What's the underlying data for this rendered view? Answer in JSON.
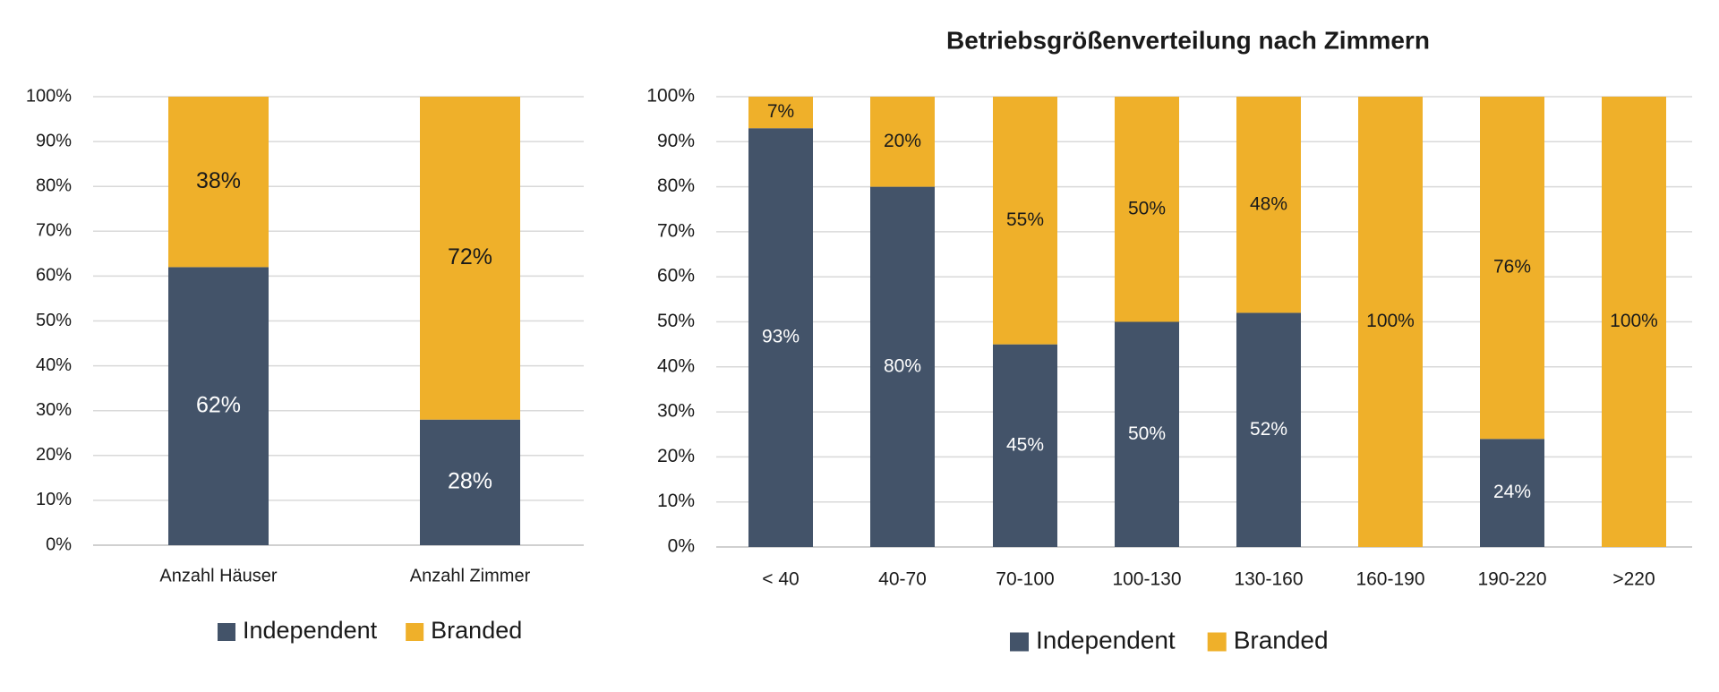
{
  "colors": {
    "independent": "#435369",
    "branded": "#EFB02A",
    "grid": "#d9d9d9",
    "axis": "#d0d0d0",
    "text": "#1a1a1a",
    "label_light": "#ffffff"
  },
  "chart_data": [
    {
      "type": "bar",
      "stacked": true,
      "percent": true,
      "title": "",
      "xlabel": "",
      "ylabel": "",
      "ylim": [
        0,
        100
      ],
      "yticks": [
        "0%",
        "10%",
        "20%",
        "30%",
        "40%",
        "50%",
        "60%",
        "70%",
        "80%",
        "90%",
        "100%"
      ],
      "grid": true,
      "legend_position": "bottom",
      "categories": [
        "Anzahl Häuser",
        "Anzahl Zimmer"
      ],
      "series": [
        {
          "name": "Independent",
          "values": [
            62,
            28
          ],
          "labels": [
            "62%",
            "28%"
          ]
        },
        {
          "name": "Branded",
          "values": [
            38,
            72
          ],
          "labels": [
            "38%",
            "72%"
          ]
        }
      ]
    },
    {
      "type": "bar",
      "stacked": true,
      "percent": true,
      "title": "Betriebsgrößenverteilung nach Zimmern",
      "xlabel": "",
      "ylabel": "",
      "ylim": [
        0,
        100
      ],
      "yticks": [
        "0%",
        "10%",
        "20%",
        "30%",
        "40%",
        "50%",
        "60%",
        "70%",
        "80%",
        "90%",
        "100%"
      ],
      "grid": true,
      "legend_position": "bottom",
      "categories": [
        "< 40",
        "40-70",
        "70-100",
        "100-130",
        "130-160",
        "160-190",
        "190-220",
        ">220"
      ],
      "series": [
        {
          "name": "Independent",
          "values": [
            93,
            80,
            45,
            50,
            52,
            0,
            24,
            0
          ],
          "labels": [
            "93%",
            "80%",
            "45%",
            "50%",
            "52%",
            "",
            "24%",
            ""
          ]
        },
        {
          "name": "Branded",
          "values": [
            7,
            20,
            55,
            50,
            48,
            100,
            76,
            100
          ],
          "labels": [
            "7%",
            "20%",
            "55%",
            "50%",
            "48%",
            "100%",
            "76%",
            "100%"
          ]
        }
      ]
    }
  ]
}
